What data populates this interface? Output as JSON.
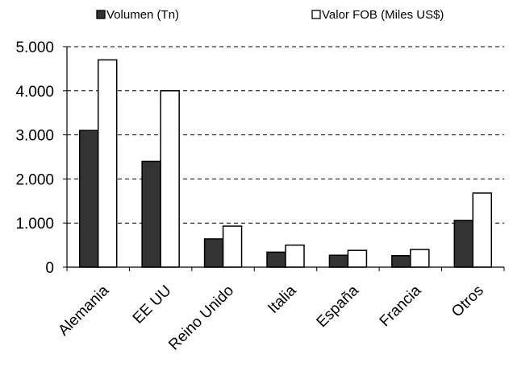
{
  "chart_data": {
    "type": "bar",
    "title": "",
    "xlabel": "",
    "ylabel": "",
    "categories": [
      "Alemania",
      "EE UU",
      "Reino Unido",
      "Italia",
      "España",
      "Francia",
      "Otros"
    ],
    "series": [
      {
        "name": "Volumen (Tn)",
        "values": [
          3100,
          2400,
          640,
          340,
          270,
          260,
          1060
        ],
        "fill": "#333333"
      },
      {
        "name": "Valor FOB (Miles US$)",
        "values": [
          4700,
          4000,
          930,
          500,
          380,
          400,
          1680
        ],
        "fill": "#ffffff"
      }
    ],
    "ylim": [
      0,
      5000
    ],
    "yticks": [
      0,
      1000,
      2000,
      3000,
      4000,
      5000
    ],
    "ytick_labels": [
      "0",
      "1.000",
      "2.000",
      "3.000",
      "4.000",
      "5.000"
    ],
    "grid": true,
    "legend_position": "top"
  }
}
